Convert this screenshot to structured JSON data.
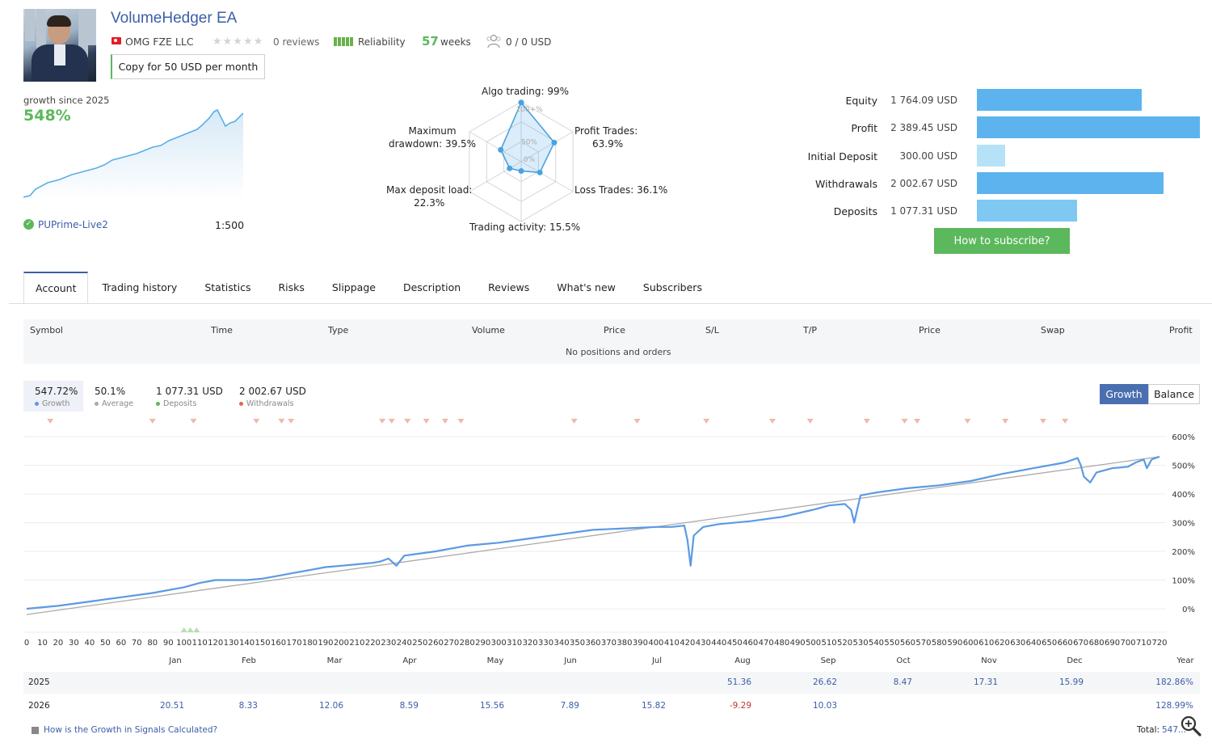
{
  "header": {
    "title": "VolumeHedger EA",
    "company": "OMG FZE LLC",
    "stars": "★★★★★",
    "reviews": "0 reviews",
    "reliability_label": "Reliability",
    "weeks_value": "57",
    "weeks_label": "weeks",
    "subscribers": "0  /  0 USD",
    "copy_button": "Copy for 50 USD per month",
    "accent_color": "#3b5ea8",
    "positive_color": "#5cb85c"
  },
  "growth": {
    "label": "growth since 2025",
    "value": "548%",
    "broker": "PUPrime-Live2",
    "leverage": "1:500"
  },
  "radar": {
    "algo": "Algo trading: 99%",
    "profit_trades_1": "Profit Trades:",
    "profit_trades_2": "63.9%",
    "loss_trades": "Loss Trades: 36.1%",
    "activity": "Trading activity: 15.5%",
    "deposit_load_1": "Max deposit load:",
    "deposit_load_2": "22.3%",
    "drawdown_1": "Maximum",
    "drawdown_2": "drawdown: 39.5%",
    "scale_100": "100+%",
    "scale_50": "50%",
    "scale_0": "0%",
    "values": [
      0.99,
      0.639,
      0.361,
      0.155,
      0.223,
      0.395
    ]
  },
  "balance": {
    "items": [
      {
        "label": "Equity",
        "value": "1 764.09 USD",
        "amount": 1764.09,
        "color": "#5cb3ee"
      },
      {
        "label": "Profit",
        "value": "2 389.45 USD",
        "amount": 2389.45,
        "color": "#5cb3ee"
      },
      {
        "label": "Initial Deposit",
        "value": "300.00 USD",
        "amount": 300.0,
        "color": "#b6e2f7"
      },
      {
        "label": "Withdrawals",
        "value": "2 002.67 USD",
        "amount": 2002.67,
        "color": "#5cb3ee"
      },
      {
        "label": "Deposits",
        "value": "1 077.31 USD",
        "amount": 1077.31,
        "color": "#7fc8f2"
      }
    ],
    "subscribe_button": "How to subscribe?"
  },
  "tabs": [
    "Account",
    "Trading history",
    "Statistics",
    "Risks",
    "Slippage",
    "Description",
    "Reviews",
    "What's new",
    "Subscribers"
  ],
  "positions": {
    "headers": [
      "Symbol",
      "Time",
      "Type",
      "Volume",
      "Price",
      "S/L",
      "T/P",
      "Price",
      "Swap",
      "Profit"
    ],
    "empty": "No positions and orders"
  },
  "chart_stats": {
    "growth_value": "547.72%",
    "growth_label": "Growth",
    "average_value": "50.1%",
    "average_label": "Average",
    "deposits_value": "1 077.31 USD",
    "deposits_label": "Deposits",
    "withdrawals_value": "2 002.67 USD",
    "withdrawals_label": "Withdrawals",
    "growth_button": "Growth",
    "balance_button": "Balance"
  },
  "chart_data": {
    "type": "line",
    "xlabel": "",
    "ylabel": "",
    "xlim": [
      0,
      720
    ],
    "ylim": [
      -50,
      650
    ],
    "x_ticks": [
      0,
      10,
      20,
      30,
      40,
      50,
      60,
      70,
      80,
      90,
      100,
      110,
      120,
      130,
      140,
      150,
      160,
      170,
      180,
      190,
      200,
      210,
      220,
      230,
      240,
      250,
      260,
      270,
      280,
      290,
      300,
      310,
      320,
      330,
      340,
      350,
      360,
      370,
      380,
      390,
      400,
      410,
      420,
      430,
      440,
      450,
      460,
      470,
      480,
      490,
      500,
      510,
      520,
      530,
      540,
      550,
      560,
      570,
      580,
      590,
      600,
      610,
      620,
      630,
      640,
      650,
      660,
      670,
      680,
      690,
      700,
      710,
      720
    ],
    "y_ticks": [
      "0%",
      "100%",
      "200%",
      "300%",
      "400%",
      "500%",
      "600%"
    ],
    "y_tick_values": [
      0,
      100,
      200,
      300,
      400,
      500,
      600
    ],
    "series": [
      {
        "x": [
          0,
          20,
          40,
          60,
          80,
          100,
          110,
          120,
          130,
          140,
          150,
          160,
          170,
          180,
          190,
          200,
          210,
          220,
          225,
          230,
          235,
          240,
          260,
          280,
          300,
          320,
          340,
          360,
          380,
          400,
          410,
          418,
          420,
          422,
          424,
          430,
          440,
          460,
          480,
          500,
          510,
          520,
          524,
          526,
          530,
          540,
          560,
          580,
          600,
          620,
          640,
          660,
          668,
          670,
          672,
          676,
          680,
          690,
          700,
          705,
          710,
          712,
          715,
          720
        ],
        "y": [
          0,
          10,
          25,
          40,
          55,
          75,
          90,
          100,
          100,
          100,
          105,
          115,
          125,
          135,
          145,
          150,
          155,
          160,
          165,
          175,
          150,
          185,
          200,
          220,
          230,
          245,
          260,
          275,
          280,
          285,
          285,
          290,
          240,
          150,
          255,
          285,
          295,
          305,
          320,
          345,
          360,
          365,
          345,
          300,
          395,
          405,
          420,
          430,
          445,
          470,
          490,
          510,
          525,
          500,
          460,
          440,
          475,
          490,
          495,
          510,
          520,
          490,
          520,
          530
        ]
      },
      {
        "x": [
          0,
          720
        ],
        "y": [
          -20,
          530
        ]
      }
    ],
    "deposit_markers_x": [
      100,
      104,
      108
    ],
    "withdrawal_markers_x": [
      15,
      80,
      106,
      146,
      162,
      168,
      226,
      232,
      242,
      254,
      266,
      276,
      348,
      388,
      432,
      474,
      498,
      534,
      558,
      566,
      598,
      622,
      646,
      660
    ]
  },
  "monthly": {
    "headers": [
      "Jan",
      "Feb",
      "Mar",
      "Apr",
      "May",
      "Jun",
      "Jul",
      "Aug",
      "Sep",
      "Oct",
      "Nov",
      "Dec",
      "Year"
    ],
    "rows": [
      {
        "year": "2025",
        "values": [
          "",
          "",
          "",
          "",
          "",
          "",
          "",
          "51.36",
          "26.62",
          "8.47",
          "17.31",
          "15.99",
          "182.86%"
        ]
      },
      {
        "year": "2026",
        "values": [
          "20.51",
          "8.33",
          "12.06",
          "8.59",
          "15.56",
          "7.89",
          "15.82",
          "-9.29",
          "10.03",
          "",
          "",
          "",
          "128.99%"
        ]
      }
    ],
    "how_link": "How is the Growth in Signals Calculated?",
    "total_label": "Total:",
    "total_value": "547..."
  }
}
